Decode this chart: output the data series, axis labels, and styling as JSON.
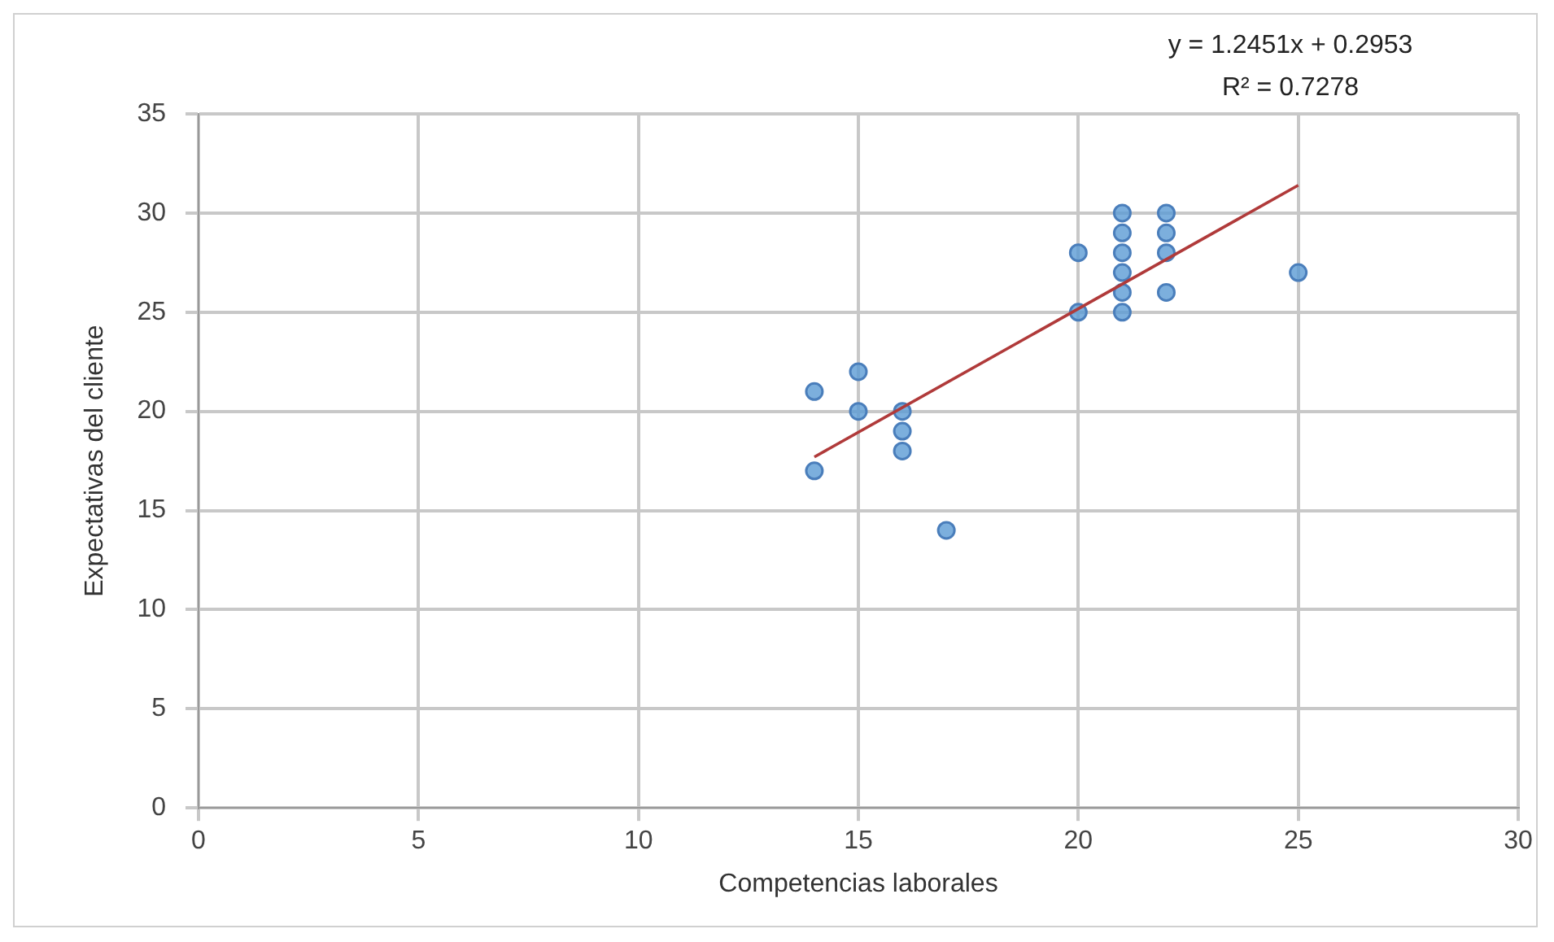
{
  "chart_data": {
    "type": "scatter",
    "xlabel": "Competencias laborales",
    "ylabel": "Expectativas del cliente",
    "annotations": [
      "y = 1.2451x + 0.2953",
      "R² = 0.7278"
    ],
    "series": [
      {
        "type": "scatter",
        "color": "#5b9bd5",
        "marker": "circle",
        "x": [
          14,
          14,
          15,
          15,
          16,
          16,
          16,
          17,
          20,
          20,
          21,
          21,
          21,
          21,
          21,
          21,
          22,
          22,
          22,
          22,
          25
        ],
        "values": [
          21,
          17,
          22,
          20,
          20,
          19,
          18,
          14,
          28,
          25,
          30,
          29,
          28,
          27,
          26,
          25,
          30,
          29,
          28,
          26,
          27
        ]
      },
      {
        "type": "line",
        "color": "#b03a3a",
        "marker": "none",
        "line_style": "solid",
        "x": [
          14,
          25
        ],
        "values": [
          17.7,
          31.4
        ]
      }
    ],
    "xlim": [
      0,
      30
    ],
    "xticks": [
      0,
      5,
      10,
      15,
      20,
      25,
      30
    ],
    "ylim": [
      0,
      35
    ],
    "yticks": [
      0,
      5,
      10,
      15,
      20,
      25,
      30,
      35
    ],
    "grid": true,
    "legend": false
  }
}
